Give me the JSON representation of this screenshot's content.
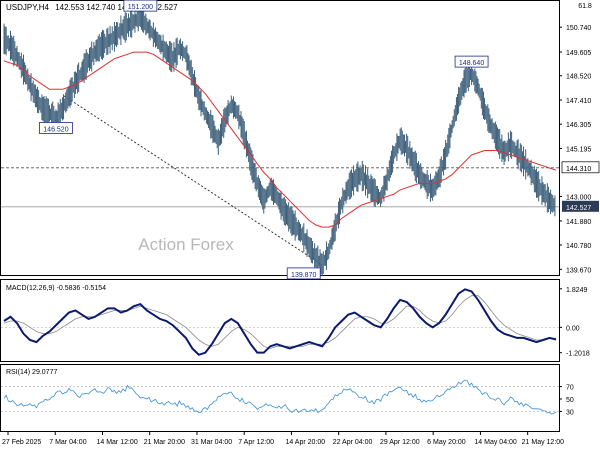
{
  "header": {
    "symbol": "USDJPY,H4",
    "ohlc": "142.553 142.740 142.510 142.527",
    "corner": "61.8"
  },
  "watermark": "Action Forex",
  "colors": {
    "candle": "#3d5f7a",
    "ma": "#e03030",
    "macd_main": "#0a1a6e",
    "macd_signal": "#8a8a8a",
    "rsi": "#3a8fd8",
    "label_box": "#1a2a8a",
    "current_price_bg": "#2b3a55"
  },
  "chart_data": [
    {
      "type": "line",
      "name": "price",
      "y_ticks": [
        "150.740",
        "149.605",
        "148.520",
        "147.410",
        "146.305",
        "145.195",
        "144.310",
        "143.000",
        "142.527",
        "141.880",
        "140.780",
        "139.670"
      ],
      "ylim": [
        139.5,
        151.8
      ],
      "x_tick_labels": [
        "27 Feb 2025",
        "7 Mar 04:00",
        "14 Mar 12:00",
        "21 Mar 20:00",
        "31 Mar 04:00",
        "7 Apr 12:00",
        "14 Apr 20:00",
        "22 Apr 04:00",
        "29 Apr 12:00",
        "6 May 20:00",
        "14 May 04:00",
        "21 May 12:00"
      ],
      "price": [
        150.2,
        149.9,
        149.4,
        148.8,
        148.1,
        147.5,
        147.0,
        146.8,
        146.52,
        147.0,
        147.6,
        148.2,
        148.7,
        149.2,
        149.6,
        149.9,
        150.1,
        150.3,
        150.6,
        150.8,
        151.0,
        151.2,
        150.8,
        150.4,
        150.0,
        149.6,
        149.3,
        149.8,
        149.5,
        148.5,
        147.5,
        146.8,
        146.2,
        145.5,
        146.5,
        147.2,
        146.8,
        145.8,
        144.6,
        143.6,
        142.8,
        143.4,
        143.0,
        142.4,
        142.0,
        141.6,
        141.2,
        140.7,
        140.2,
        139.87,
        140.5,
        141.6,
        142.7,
        143.4,
        143.8,
        144.0,
        143.6,
        143.2,
        142.9,
        143.8,
        144.9,
        145.6,
        145.2,
        144.6,
        144.0,
        143.6,
        143.3,
        143.9,
        144.9,
        146.2,
        147.4,
        148.3,
        148.64,
        148.0,
        147.0,
        146.2,
        145.6,
        145.0,
        145.4,
        145.0,
        144.6,
        144.2,
        143.6,
        143.2,
        142.8,
        142.527
      ],
      "ma": [
        149.2,
        149.1,
        149.0,
        148.8,
        148.5,
        148.3,
        148.1,
        147.9,
        147.9,
        147.9,
        148.0,
        148.1,
        148.3,
        148.5,
        148.7,
        148.9,
        149.1,
        149.3,
        149.4,
        149.5,
        149.6,
        149.6,
        149.6,
        149.5,
        149.3,
        149.1,
        148.9,
        148.7,
        148.5,
        148.3,
        148.0,
        147.7,
        147.3,
        146.9,
        146.5,
        146.1,
        145.7,
        145.3,
        144.9,
        144.5,
        144.1,
        143.8,
        143.4,
        143.1,
        142.8,
        142.5,
        142.2,
        141.9,
        141.7,
        141.6,
        141.6,
        141.7,
        142.0,
        142.2,
        142.4,
        142.6,
        142.7,
        142.8,
        142.9,
        143.0,
        143.1,
        143.3,
        143.4,
        143.5,
        143.6,
        143.6,
        143.6,
        143.7,
        143.8,
        144.0,
        144.3,
        144.6,
        144.9,
        145.0,
        145.1,
        145.1,
        145.1,
        145.0,
        144.9,
        144.8,
        144.7,
        144.6,
        144.5,
        144.4,
        144.3,
        144.2
      ],
      "labels": [
        "151.200",
        "146.520",
        "139.870",
        "148.640"
      ],
      "current_price": "142.527",
      "marked_level": "144.310"
    },
    {
      "type": "line",
      "name": "MACD(12,26,9)",
      "title_text": "MACD(12,26,9) -0.5836 -0.5154",
      "y_ticks": [
        "1.8249",
        "0.00",
        "-1.2018"
      ],
      "ylim": [
        -1.5,
        2.1
      ],
      "macd": [
        0.3,
        0.5,
        0.2,
        -0.3,
        -0.6,
        -0.7,
        -0.4,
        -0.2,
        0.1,
        0.4,
        0.7,
        0.8,
        0.6,
        0.4,
        0.5,
        0.7,
        0.9,
        0.9,
        0.7,
        0.8,
        1.0,
        1.1,
        0.8,
        0.6,
        0.4,
        0.3,
        0.1,
        -0.2,
        -0.5,
        -1.0,
        -1.3,
        -1.2,
        -0.8,
        -0.3,
        0.2,
        0.4,
        0.2,
        -0.3,
        -0.8,
        -1.2,
        -1.2,
        -0.9,
        -0.8,
        -0.9,
        -1.0,
        -0.9,
        -0.8,
        -0.7,
        -0.8,
        -0.9,
        -0.5,
        0.0,
        0.3,
        0.6,
        0.7,
        0.5,
        0.3,
        0.1,
        0.0,
        0.4,
        0.9,
        1.3,
        1.2,
        0.9,
        0.5,
        0.2,
        0.0,
        0.2,
        0.6,
        1.1,
        1.6,
        1.8,
        1.7,
        1.3,
        0.8,
        0.3,
        -0.1,
        -0.3,
        -0.4,
        -0.5,
        -0.5,
        -0.6,
        -0.7,
        -0.6,
        -0.5,
        -0.58
      ],
      "signal": [
        0.2,
        0.3,
        0.3,
        0.2,
        0.0,
        -0.2,
        -0.3,
        -0.3,
        -0.2,
        0.0,
        0.2,
        0.4,
        0.5,
        0.5,
        0.5,
        0.6,
        0.7,
        0.8,
        0.8,
        0.8,
        0.9,
        1.0,
        0.9,
        0.8,
        0.7,
        0.6,
        0.4,
        0.2,
        0.0,
        -0.3,
        -0.6,
        -0.8,
        -0.9,
        -0.8,
        -0.5,
        -0.2,
        0.0,
        -0.1,
        -0.3,
        -0.6,
        -0.9,
        -1.0,
        -0.9,
        -0.9,
        -0.9,
        -0.9,
        -0.9,
        -0.8,
        -0.8,
        -0.8,
        -0.7,
        -0.5,
        -0.2,
        0.1,
        0.4,
        0.5,
        0.5,
        0.4,
        0.2,
        0.2,
        0.4,
        0.7,
        1.0,
        1.0,
        0.8,
        0.5,
        0.3,
        0.2,
        0.3,
        0.6,
        1.0,
        1.3,
        1.5,
        1.5,
        1.2,
        0.8,
        0.4,
        0.1,
        -0.1,
        -0.3,
        -0.4,
        -0.5,
        -0.6,
        -0.6,
        -0.5,
        -0.52
      ]
    },
    {
      "type": "line",
      "name": "RSI(14)",
      "title_text": "RSI(14) 29.0777",
      "y_ticks": [
        "100",
        "70",
        "50",
        "30",
        "0"
      ],
      "ylim": [
        0,
        100
      ],
      "rsi": [
        55,
        48,
        42,
        38,
        40,
        35,
        45,
        52,
        60,
        62,
        66,
        58,
        55,
        61,
        63,
        58,
        65,
        60,
        62,
        68,
        64,
        55,
        50,
        48,
        42,
        45,
        40,
        44,
        38,
        35,
        30,
        33,
        42,
        55,
        58,
        60,
        52,
        45,
        40,
        35,
        38,
        42,
        36,
        40,
        33,
        30,
        35,
        28,
        33,
        30,
        45,
        55,
        62,
        66,
        58,
        55,
        48,
        44,
        50,
        58,
        65,
        72,
        62,
        56,
        50,
        45,
        48,
        55,
        62,
        70,
        75,
        80,
        74,
        65,
        58,
        52,
        48,
        44,
        52,
        46,
        42,
        38,
        35,
        32,
        30,
        29.08
      ]
    }
  ]
}
